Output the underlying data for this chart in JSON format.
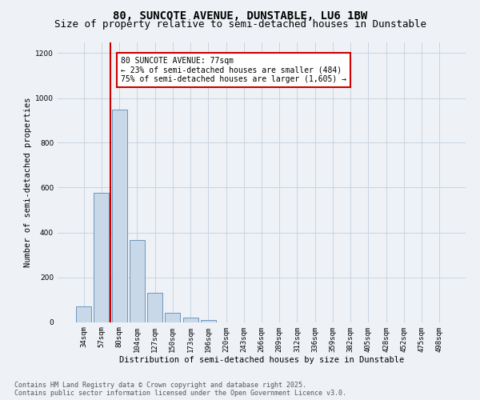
{
  "title": "80, SUNCOTE AVENUE, DUNSTABLE, LU6 1BW",
  "subtitle": "Size of property relative to semi-detached houses in Dunstable",
  "xlabel": "Distribution of semi-detached houses by size in Dunstable",
  "ylabel": "Number of semi-detached properties",
  "bin_labels": [
    "34sqm",
    "57sqm",
    "80sqm",
    "104sqm",
    "127sqm",
    "150sqm",
    "173sqm",
    "196sqm",
    "220sqm",
    "243sqm",
    "266sqm",
    "289sqm",
    "312sqm",
    "336sqm",
    "359sqm",
    "382sqm",
    "405sqm",
    "428sqm",
    "452sqm",
    "475sqm",
    "498sqm"
  ],
  "bin_values": [
    70,
    575,
    950,
    365,
    130,
    42,
    18,
    10,
    0,
    0,
    0,
    0,
    0,
    0,
    0,
    0,
    0,
    0,
    0,
    0,
    0
  ],
  "bar_color": "#c8d8e8",
  "bar_edge_color": "#5a8ab8",
  "vline_color": "#cc0000",
  "annotation_text": "80 SUNCOTE AVENUE: 77sqm\n← 23% of semi-detached houses are smaller (484)\n75% of semi-detached houses are larger (1,605) →",
  "annotation_box_color": "#ffffff",
  "annotation_box_edge_color": "#cc0000",
  "ylim": [
    0,
    1250
  ],
  "yticks": [
    0,
    200,
    400,
    600,
    800,
    1000,
    1200
  ],
  "grid_color": "#c8d4e0",
  "background_color": "#eef2f6",
  "footer_text": "Contains HM Land Registry data © Crown copyright and database right 2025.\nContains public sector information licensed under the Open Government Licence v3.0.",
  "title_fontsize": 10,
  "subtitle_fontsize": 9,
  "axis_label_fontsize": 7.5,
  "tick_fontsize": 6.5,
  "annotation_fontsize": 7,
  "footer_fontsize": 6
}
